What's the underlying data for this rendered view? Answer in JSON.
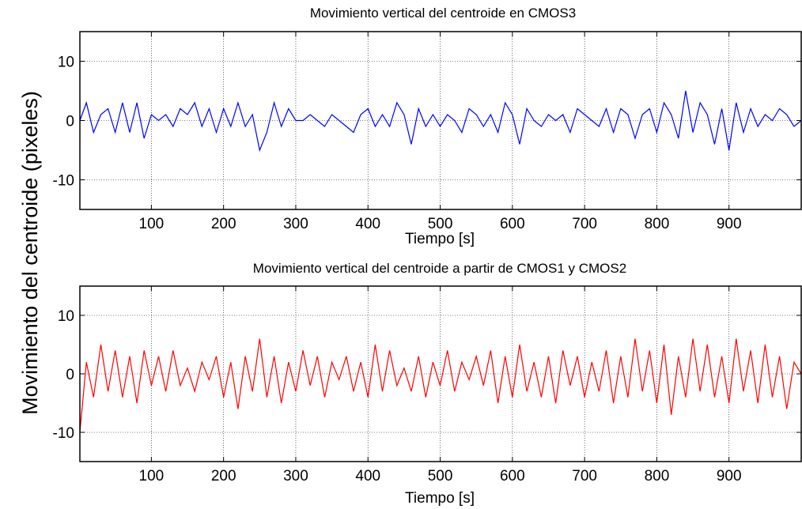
{
  "figure": {
    "ylabel": "Movimiento del centroide (pixeles)"
  },
  "chart_data": [
    {
      "type": "line",
      "title": "Movimiento vertical del centroide en CMOS3",
      "xlabel": "Tiempo [s]",
      "ylabel": "",
      "xlim": [
        1,
        1000
      ],
      "ylim": [
        -15,
        15
      ],
      "xticks": [
        100,
        200,
        300,
        400,
        500,
        600,
        700,
        800,
        900
      ],
      "yticks": [
        10,
        0,
        -10
      ],
      "grid": true,
      "series": [
        {
          "color": "#0000ff",
          "x": [
            1,
            10,
            20,
            30,
            40,
            50,
            60,
            70,
            80,
            90,
            100,
            110,
            120,
            130,
            140,
            150,
            160,
            170,
            180,
            190,
            200,
            210,
            220,
            230,
            240,
            250,
            260,
            270,
            280,
            290,
            300,
            310,
            320,
            330,
            340,
            350,
            360,
            370,
            380,
            390,
            400,
            410,
            420,
            430,
            440,
            450,
            460,
            470,
            480,
            490,
            500,
            510,
            520,
            530,
            540,
            550,
            560,
            570,
            580,
            590,
            600,
            610,
            620,
            630,
            640,
            650,
            660,
            670,
            680,
            690,
            700,
            710,
            720,
            730,
            740,
            750,
            760,
            770,
            780,
            790,
            800,
            810,
            820,
            830,
            840,
            850,
            860,
            870,
            880,
            890,
            900,
            910,
            920,
            930,
            940,
            950,
            960,
            970,
            980,
            990,
            1000
          ],
          "values": [
            0,
            3,
            -2,
            1,
            2,
            -2,
            3,
            -2,
            3,
            -3,
            1,
            0,
            1,
            -1,
            2,
            1,
            3,
            -1,
            2,
            -2,
            2,
            -1,
            3,
            -1,
            1,
            -5,
            -2,
            3,
            -1,
            2,
            0,
            0,
            1,
            0,
            -1,
            1,
            0,
            -1,
            -2,
            1,
            2,
            -1,
            1,
            -1,
            3,
            1,
            -4,
            2,
            -1,
            1,
            -1,
            1,
            0,
            -2,
            2,
            1,
            -1,
            1,
            -2,
            3,
            1,
            -4,
            2,
            0,
            -1,
            1,
            0,
            1,
            -2,
            2,
            1,
            0,
            -1,
            2,
            -2,
            2,
            1,
            -3,
            1,
            2,
            -2,
            3,
            1,
            -3,
            5,
            -2,
            3,
            1,
            -4,
            2,
            -5,
            3,
            -2,
            2,
            -1,
            1,
            0,
            2,
            1,
            -1,
            0
          ]
        }
      ]
    },
    {
      "type": "line",
      "title": "Movimiento vertical del centroide a partir de CMOS1 y CMOS2",
      "xlabel": "Tiempo [s]",
      "ylabel": "",
      "xlim": [
        1,
        1000
      ],
      "ylim": [
        -15,
        15
      ],
      "xticks": [
        100,
        200,
        300,
        400,
        500,
        600,
        700,
        800,
        900
      ],
      "yticks": [
        10,
        0,
        -10
      ],
      "grid": true,
      "series": [
        {
          "color": "#ff0000",
          "x": [
            1,
            10,
            20,
            30,
            40,
            50,
            60,
            70,
            80,
            90,
            100,
            110,
            120,
            130,
            140,
            150,
            160,
            170,
            180,
            190,
            200,
            210,
            220,
            230,
            240,
            250,
            260,
            270,
            280,
            290,
            300,
            310,
            320,
            330,
            340,
            350,
            360,
            370,
            380,
            390,
            400,
            410,
            420,
            430,
            440,
            450,
            460,
            470,
            480,
            490,
            500,
            510,
            520,
            530,
            540,
            550,
            560,
            570,
            580,
            590,
            600,
            610,
            620,
            630,
            640,
            650,
            660,
            670,
            680,
            690,
            700,
            710,
            720,
            730,
            740,
            750,
            760,
            770,
            780,
            790,
            800,
            810,
            820,
            830,
            840,
            850,
            860,
            870,
            880,
            890,
            900,
            910,
            920,
            930,
            940,
            950,
            960,
            970,
            980,
            990,
            1000
          ],
          "values": [
            -10,
            2,
            -4,
            5,
            -3,
            4,
            -4,
            3,
            -5,
            4,
            -2,
            3,
            -3,
            4,
            -2,
            1,
            -3,
            2,
            -1,
            3,
            -4,
            2,
            -6,
            3,
            -3,
            6,
            -4,
            3,
            -5,
            2,
            -3,
            4,
            -2,
            3,
            -4,
            2,
            -1,
            3,
            -3,
            2,
            -4,
            5,
            -3,
            4,
            -2,
            1,
            -3,
            3,
            -4,
            2,
            -2,
            4,
            -3,
            2,
            -1,
            3,
            -2,
            4,
            -5,
            3,
            -4,
            5,
            -3,
            2,
            -4,
            3,
            -5,
            4,
            -2,
            3,
            -4,
            2,
            -3,
            4,
            -5,
            3,
            -4,
            6,
            -3,
            4,
            -5,
            5,
            -7,
            3,
            -4,
            6,
            -3,
            5,
            -4,
            3,
            -5,
            6,
            -3,
            4,
            -5,
            5,
            -4,
            3,
            -6,
            2,
            0
          ]
        }
      ]
    }
  ]
}
